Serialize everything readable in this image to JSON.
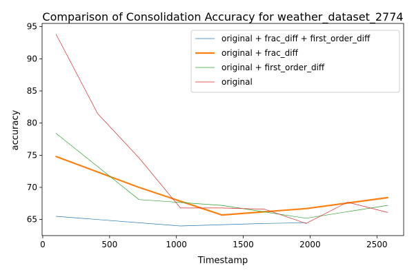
{
  "chart_data": {
    "type": "line",
    "title": "Comparison of Consolidation Accuracy for weather_dataset_2774",
    "xlabel": "Timestamp",
    "ylabel": "accuracy",
    "xlim": [
      -5,
      2700
    ],
    "ylim": [
      62.5,
      95.5
    ],
    "xticks": [
      0,
      500,
      1000,
      1500,
      2000,
      2500
    ],
    "yticks": [
      65,
      70,
      75,
      80,
      85,
      90,
      95
    ],
    "grid": false,
    "legend_position": "top-right",
    "series": [
      {
        "name": "original + frac_diff + first_order_diff",
        "color": "#1f77b4",
        "linewidth": "thin",
        "x": [
          100,
          1030,
          1670,
          1970
        ],
        "y": [
          65.5,
          64.0,
          64.4,
          64.5
        ]
      },
      {
        "name": "original + frac_diff",
        "color": "#ff7f0e",
        "linewidth": "thick",
        "x": [
          100,
          720,
          1340,
          1970,
          2580
        ],
        "y": [
          74.8,
          70.0,
          65.7,
          66.7,
          68.4
        ]
      },
      {
        "name": "original + first_order_diff",
        "color": "#2ca02c",
        "linewidth": "thin",
        "x": [
          100,
          720,
          1340,
          1970,
          2580
        ],
        "y": [
          78.4,
          68.1,
          67.2,
          65.2,
          67.2
        ]
      },
      {
        "name": "original",
        "color": "#d62728",
        "linewidth": "thin",
        "x": [
          100,
          410,
          720,
          1030,
          1340,
          1660,
          1970,
          2280,
          2580
        ],
        "y": [
          93.8,
          81.5,
          74.6,
          66.8,
          66.8,
          66.6,
          64.4,
          67.7,
          66.1
        ]
      }
    ]
  }
}
